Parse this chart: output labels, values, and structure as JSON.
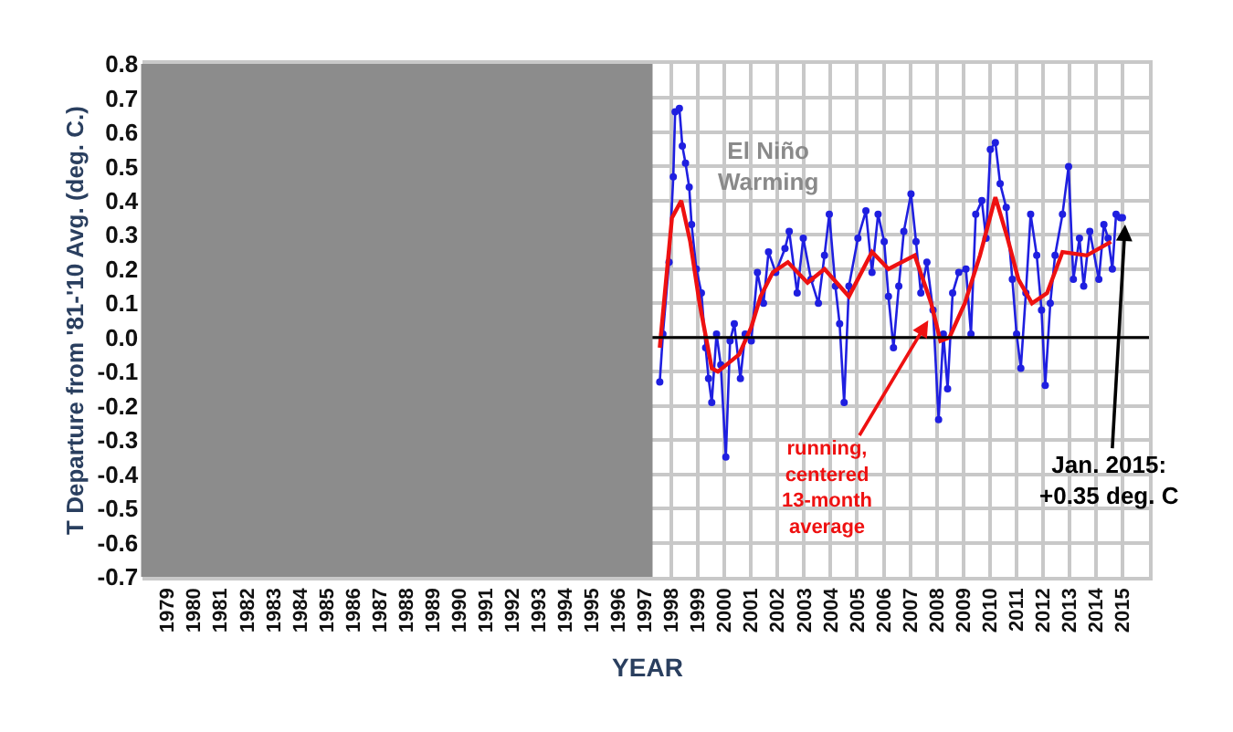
{
  "chart_data": {
    "type": "line",
    "xlabel": "YEAR",
    "ylabel": "T Departure from '81-'10 Avg. (deg. C.)",
    "xlim": [
      1978.2,
      2016.0
    ],
    "xticks": [
      1979,
      1980,
      1981,
      1982,
      1983,
      1984,
      1985,
      1986,
      1987,
      1988,
      1989,
      1990,
      1991,
      1992,
      1993,
      1994,
      1995,
      1996,
      1997,
      1998,
      1999,
      2000,
      2001,
      2002,
      2003,
      2004,
      2005,
      2006,
      2007,
      2008,
      2009,
      2010,
      2011,
      2012,
      2013,
      2014,
      2015
    ],
    "ylim": [
      -0.7,
      0.8
    ],
    "yticks": [
      0.8,
      0.7,
      0.6,
      0.5,
      0.4,
      0.3,
      0.2,
      0.1,
      {
        "value": 0,
        "label": "0.0"
      },
      -0.1,
      -0.2,
      -0.3,
      -0.4,
      -0.5,
      -0.6,
      -0.7
    ],
    "grid": true,
    "line_style": "solid",
    "series": [
      {
        "color": "#1f1fe0",
        "marker": "circle",
        "x": [
          1997.56,
          1997.68,
          1997.91,
          1998.07,
          1998.14,
          1998.3,
          1998.41,
          1998.53,
          1998.67,
          1998.76,
          1998.94,
          1999.13,
          1999.29,
          1999.4,
          1999.52,
          1999.7,
          1999.86,
          2000.05,
          2000.21,
          2000.37,
          2000.6,
          2000.78,
          2001.01,
          2001.24,
          2001.47,
          2001.66,
          2001.93,
          2002.28,
          2002.44,
          2002.74,
          2002.97,
          2003.26,
          2003.54,
          2003.77,
          2003.95,
          2004.18,
          2004.34,
          2004.51,
          2004.69,
          2005.03,
          2005.33,
          2005.56,
          2005.79,
          2006.02,
          2006.18,
          2006.37,
          2006.57,
          2006.76,
          2007.03,
          2007.22,
          2007.4,
          2007.63,
          2007.86,
          2008.07,
          2008.25,
          2008.41,
          2008.6,
          2008.83,
          2009.1,
          2009.29,
          2009.47,
          2009.7,
          2009.86,
          2010.02,
          2010.21,
          2010.39,
          2010.62,
          2010.85,
          2011.01,
          2011.17,
          2011.36,
          2011.54,
          2011.77,
          2011.95,
          2012.09,
          2012.28,
          2012.46,
          2012.74,
          2012.97,
          2013.15,
          2013.38,
          2013.54,
          2013.77,
          2014.11,
          2014.3,
          2014.46,
          2014.62,
          2014.76,
          2014.92,
          2015.0
        ],
        "values": [
          -0.13,
          0.01,
          0.22,
          0.47,
          0.66,
          0.67,
          0.56,
          0.51,
          0.44,
          0.33,
          0.2,
          0.13,
          -0.03,
          -0.12,
          -0.19,
          0.01,
          -0.08,
          -0.35,
          -0.01,
          0.04,
          -0.12,
          0.01,
          -0.01,
          0.19,
          0.1,
          0.25,
          0.19,
          0.26,
          0.31,
          0.13,
          0.29,
          0.17,
          0.1,
          0.24,
          0.36,
          0.15,
          0.04,
          -0.19,
          0.15,
          0.29,
          0.37,
          0.19,
          0.36,
          0.28,
          0.12,
          -0.03,
          0.15,
          0.31,
          0.42,
          0.28,
          0.13,
          0.22,
          0.08,
          -0.24,
          0.01,
          -0.15,
          0.13,
          0.19,
          0.2,
          0.01,
          0.36,
          0.4,
          0.29,
          0.55,
          0.57,
          0.45,
          0.38,
          0.17,
          0.01,
          -0.09,
          0.13,
          0.36,
          0.24,
          0.08,
          -0.14,
          0.1,
          0.24,
          0.36,
          0.5,
          0.17,
          0.29,
          0.15,
          0.31,
          0.17,
          0.33,
          0.29,
          0.2,
          0.36,
          0.35,
          0.35
        ]
      },
      {
        "color": "#ee1111",
        "marker": "none",
        "x": [
          1997.56,
          1998.02,
          1998.37,
          1998.71,
          1999.06,
          1999.52,
          1999.75,
          2000.55,
          2001.01,
          2001.36,
          2001.82,
          2002.39,
          2003.13,
          2003.77,
          2004.69,
          2005.56,
          2006.18,
          2007.17,
          2007.79,
          2008.14,
          2008.48,
          2009.06,
          2009.63,
          2010.21,
          2010.67,
          2011.08,
          2011.59,
          2012.16,
          2012.74,
          2013.66,
          2014.57
        ],
        "values": [
          -0.03,
          0.35,
          0.4,
          0.28,
          0.1,
          -0.09,
          -0.1,
          -0.05,
          0.03,
          0.12,
          0.19,
          0.22,
          0.16,
          0.2,
          0.12,
          0.25,
          0.2,
          0.24,
          0.1,
          -0.01,
          0.0,
          0.1,
          0.24,
          0.41,
          0.29,
          0.17,
          0.1,
          0.13,
          0.25,
          0.24,
          0.28
        ]
      }
    ],
    "ref_lines": [
      {
        "axis": "y",
        "value": 0,
        "color": "#000000"
      }
    ],
    "annotations": [
      "El Niño\nWarming",
      {
        "text": "running,\ncentered\n13-month\naverage",
        "x": 2007.68,
        "y": 0.05
      },
      {
        "text": "Jan. 2015:\n+0.35 deg. C",
        "x": 2015.1,
        "y": 0.33
      }
    ]
  }
}
